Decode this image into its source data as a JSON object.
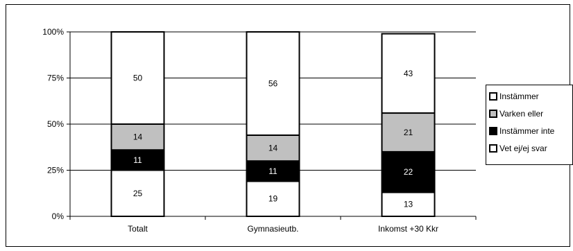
{
  "chart_data": {
    "type": "bar",
    "stacked": true,
    "percent_stacked": true,
    "categories": [
      "Totalt",
      "Gymnasieutb.",
      "Inkomst +30 Kkr"
    ],
    "series": [
      {
        "name": "Vet ej/ej svar",
        "values": [
          25,
          19,
          13
        ],
        "color": "#ffffff"
      },
      {
        "name": "Instämmer inte",
        "values": [
          11,
          11,
          22
        ],
        "color": "#000000"
      },
      {
        "name": "Varken eller",
        "values": [
          14,
          14,
          21
        ],
        "color": "#c0c0c0"
      },
      {
        "name": "Instämmer",
        "values": [
          50,
          56,
          43
        ],
        "color": "#ffffff"
      }
    ],
    "legend_order": [
      "Instämmer",
      "Varken eller",
      "Instämmer inte",
      "Vet ej/ej svar"
    ],
    "y_ticks": [
      "0%",
      "25%",
      "50%",
      "75%",
      "100%"
    ],
    "ylim": [
      0,
      100
    ],
    "grid": true,
    "legend_position": "right"
  }
}
